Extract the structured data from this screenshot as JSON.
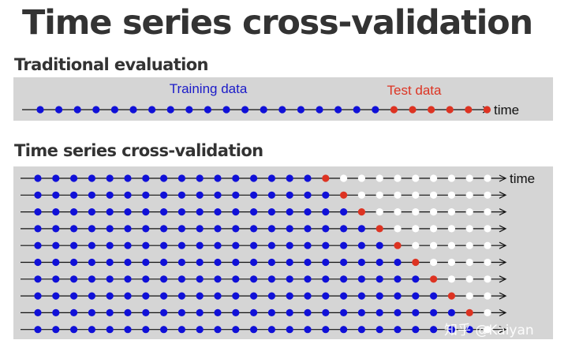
{
  "title": "Time series cross-validation",
  "traditional": {
    "heading": "Traditional evaluation",
    "training_label": "Training data",
    "test_label": "Test data",
    "axis_label": "time",
    "train_points": 19,
    "test_points": 6
  },
  "cross_validation": {
    "heading": "Time series cross-validation",
    "axis_label": "time",
    "total_points": 26,
    "rows": [
      {
        "train": 16,
        "test_index": 16
      },
      {
        "train": 17,
        "test_index": 17
      },
      {
        "train": 18,
        "test_index": 18
      },
      {
        "train": 19,
        "test_index": 19
      },
      {
        "train": 20,
        "test_index": 20
      },
      {
        "train": 21,
        "test_index": 21
      },
      {
        "train": 22,
        "test_index": 22
      },
      {
        "train": 23,
        "test_index": 23
      },
      {
        "train": 24,
        "test_index": 24
      },
      {
        "train": 25,
        "test_index": null
      }
    ]
  },
  "colors": {
    "title": "#333333",
    "panel": "#d5d5d5",
    "train": "#1010d8",
    "test": "#dd3322",
    "unused": "#ffffff",
    "label_train": "#1a1ac8",
    "label_test": "#dd3322"
  },
  "watermark": "知乎 @Kaiyan"
}
